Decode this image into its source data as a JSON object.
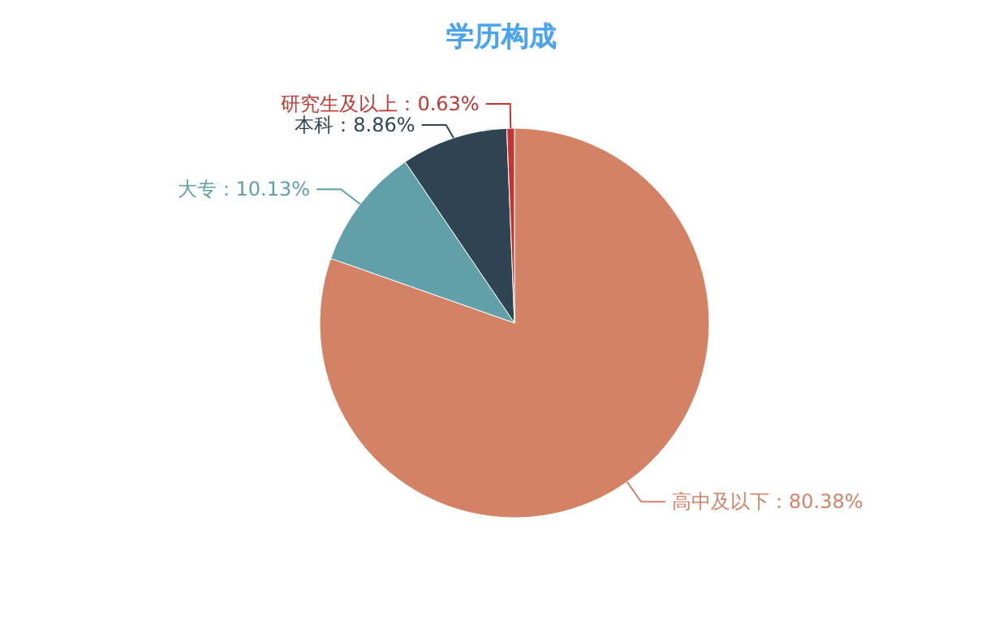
{
  "chart_data": {
    "type": "pie",
    "title": "学历构成",
    "categories": [
      "高中及以下",
      "大专",
      "本科",
      "研究生及以上"
    ],
    "values": [
      80.38,
      10.13,
      8.86,
      0.63
    ],
    "colors": [
      "#d48265",
      "#61a0a8",
      "#2f4554",
      "#c23531"
    ],
    "value_labels": [
      "：80.38%",
      "：10.13%",
      "：8.86%",
      "：0.63%"
    ],
    "legend": false
  }
}
